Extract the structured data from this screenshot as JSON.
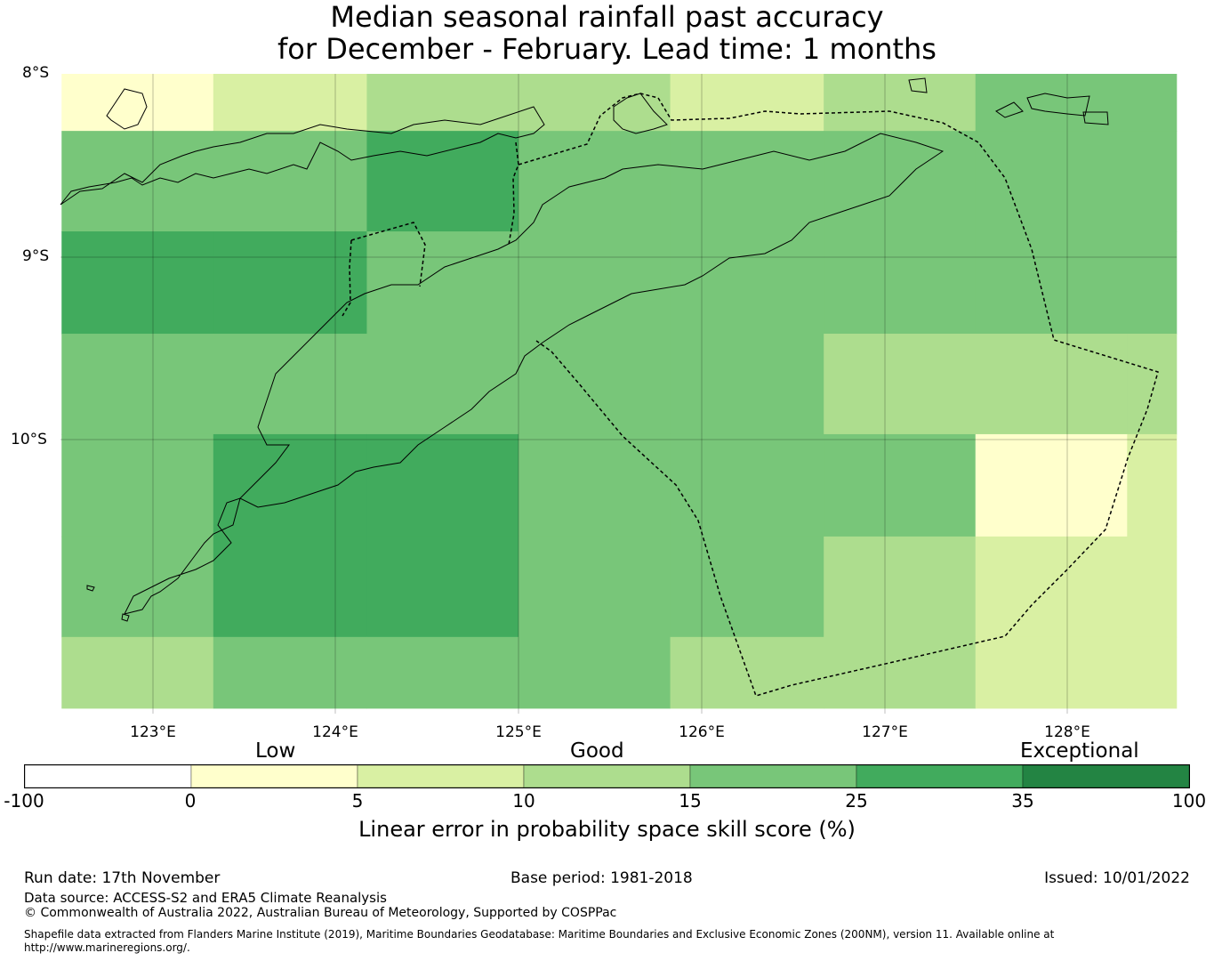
{
  "title": {
    "line1": "Median seasonal rainfall past accuracy",
    "line2": "for December - February. Lead time: 1 months"
  },
  "map": {
    "lat_labels": [
      "8°S",
      "9°S",
      "10°S"
    ],
    "lon_labels": [
      "123°E",
      "124°E",
      "125°E",
      "126°E",
      "127°E",
      "128°E"
    ],
    "grid": {
      "lon_edges": [
        122.5,
        123.33,
        124.17,
        125.0,
        125.83,
        126.67,
        127.5,
        128.33,
        128.6
      ],
      "rows": [
        {
          "lat_top": 7.97,
          "lat_bottom": 8.31,
          "cells": [
            "0-5",
            "5-10",
            "10-15",
            "10-15",
            "5-10",
            "10-15",
            "15-25",
            "15-25"
          ]
        },
        {
          "lat_top": 8.31,
          "lat_bottom": 8.86,
          "cells": [
            "15-25",
            "15-25",
            "25-35",
            "15-25",
            "15-25",
            "15-25",
            "15-25",
            "15-25"
          ]
        },
        {
          "lat_top": 8.86,
          "lat_bottom": 9.42,
          "cells": [
            "25-35",
            "25-35",
            "15-25",
            "15-25",
            "15-25",
            "15-25",
            "15-25",
            "15-25"
          ]
        },
        {
          "lat_top": 9.42,
          "lat_bottom": 9.97,
          "cells": [
            "15-25",
            "15-25",
            "15-25",
            "15-25",
            "15-25",
            "10-15",
            "10-15",
            "10-15"
          ]
        },
        {
          "lat_top": 9.97,
          "lat_bottom": 10.53,
          "cells": [
            "15-25",
            "25-35",
            "25-35",
            "15-25",
            "15-25",
            "15-25",
            "0-5",
            "5-10"
          ]
        },
        {
          "lat_top": 10.53,
          "lat_bottom": 11.08,
          "cells": [
            "15-25",
            "25-35",
            "25-35",
            "15-25",
            "15-25",
            "10-15",
            "5-10",
            "5-10"
          ]
        },
        {
          "lat_top": 11.08,
          "lat_bottom": 11.47,
          "cells": [
            "10-15",
            "15-25",
            "15-25",
            "15-25",
            "10-15",
            "10-15",
            "5-10",
            "5-10"
          ]
        }
      ]
    }
  },
  "colorbar": {
    "category_labels": [
      "Low",
      "Good",
      "Exceptional"
    ],
    "ticks": [
      "-100",
      "0",
      "5",
      "10",
      "15",
      "25",
      "35",
      "100"
    ],
    "colors": [
      "#ffffff",
      "#ffffcc",
      "#d9f0a3",
      "#addd8e",
      "#78c679",
      "#41ab5d",
      "#238443"
    ],
    "title": "Linear error in probability space skill score (%)"
  },
  "footer": {
    "run_date": "Run date: 17th November",
    "base_period": "Base period: 1981-2018",
    "issued": "Issued: 10/01/2022",
    "data_source": "Data source: ACCESS-S2 and ERA5 Climate Reanalysis",
    "copyright": "© Commonwealth of Australia 2022, Australian Bureau of Meteorology, Supported by COSPPac",
    "shapefile_line1": "Shapefile data extracted from Flanders Marine Institute (2019), Maritime Boundaries Geodatabase: Maritime Boundaries and Exclusive Economic Zones (200NM), version 11. Available online at",
    "shapefile_line2": "http://www.marineregions.org/."
  }
}
